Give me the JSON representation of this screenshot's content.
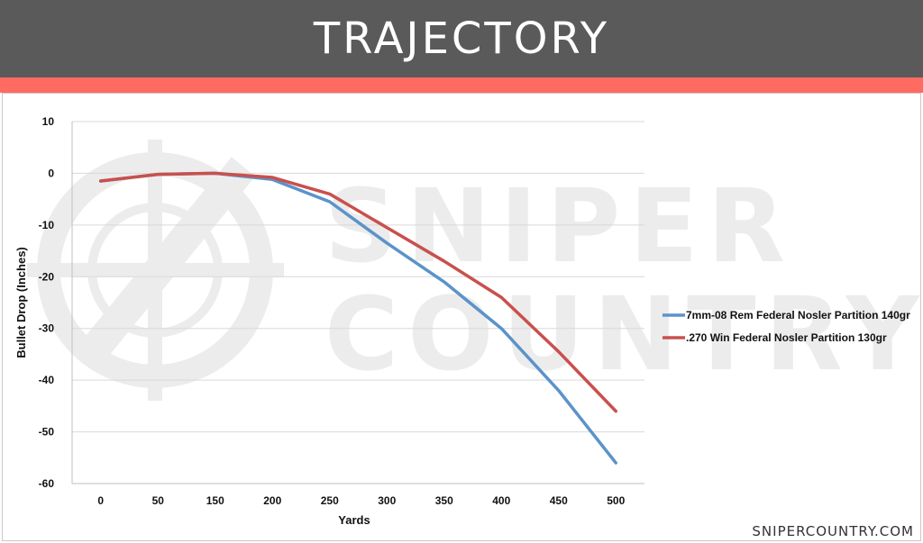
{
  "header": {
    "title": "TRAJECTORY"
  },
  "footer": {
    "site": "SNIPERCOUNTRY.COM"
  },
  "watermark": {
    "line1": "SNIPER",
    "line2": "COUNTRY"
  },
  "colors": {
    "header_bg": "#5a5a5a",
    "accent": "#ff6b61",
    "series1": "#5b93c9",
    "series2": "#c9504d"
  },
  "chart_data": {
    "type": "line",
    "title": "",
    "xlabel": "Yards",
    "ylabel": "Bullet Drop (Inches)",
    "categories": [
      "0",
      "50",
      "150",
      "200",
      "250",
      "300",
      "350",
      "400",
      "450",
      "500"
    ],
    "ylim": [
      -60,
      10
    ],
    "yticks": [
      10,
      0,
      -10,
      -20,
      -30,
      -40,
      -50,
      -60
    ],
    "grid": true,
    "legend_position": "right",
    "series": [
      {
        "name": "7mm-08 Rem Federal Nosler Partition 140gr",
        "values": [
          -1.5,
          -0.2,
          0,
          -1.2,
          -5.5,
          -13.5,
          -21,
          -30,
          -42,
          -56
        ]
      },
      {
        "name": ".270 Win Federal Nosler Partition 130gr",
        "values": [
          -1.5,
          -0.2,
          0,
          -0.8,
          -4,
          -10.5,
          -17,
          -24,
          -34.5,
          -46
        ]
      }
    ]
  }
}
